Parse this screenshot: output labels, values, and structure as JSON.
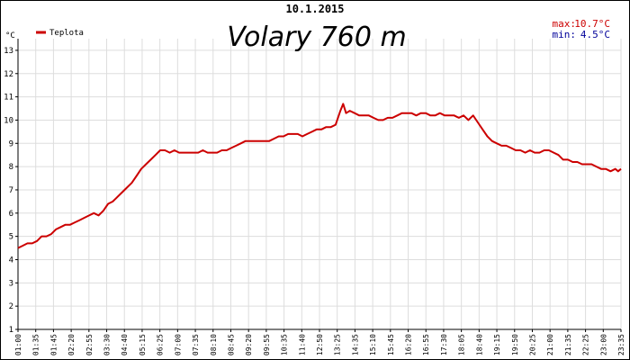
{
  "chart_data": {
    "type": "line",
    "date": "10.1.2015",
    "title": "Volary 760 m",
    "legend": "Teplota",
    "legend_position": "top-left",
    "y_unit": "°C",
    "ylim": [
      1,
      13.5
    ],
    "y_ticks": [
      1,
      2,
      3,
      4,
      5,
      6,
      7,
      8,
      9,
      10,
      11,
      12,
      13
    ],
    "grid": true,
    "stats": {
      "max_label": "max:",
      "max_value": "10.7°C",
      "min_label": "min:",
      "min_value": "4.5°C"
    },
    "colors": {
      "line": "#cc0000",
      "max": "#cc0000",
      "min": "#000099",
      "grid": "#dddddd"
    },
    "x_ticks": [
      "01:00",
      "01:35",
      "01:45",
      "02:20",
      "02:55",
      "03:30",
      "04:40",
      "05:15",
      "06:25",
      "07:00",
      "07:35",
      "08:10",
      "08:45",
      "09:20",
      "09:55",
      "10:35",
      "11:40",
      "12:50",
      "13:25",
      "14:35",
      "15:10",
      "15:45",
      "16:20",
      "16:55",
      "17:30",
      "18:05",
      "18:40",
      "19:15",
      "19:50",
      "20:25",
      "21:00",
      "21:35",
      "22:25",
      "23:00",
      "23:35"
    ],
    "series": [
      {
        "name": "Teplota",
        "points": [
          [
            0,
            4.5
          ],
          [
            0.5,
            4.6
          ],
          [
            1.0,
            4.7
          ],
          [
            1.5,
            4.7
          ],
          [
            2.0,
            4.8
          ],
          [
            2.5,
            5.0
          ],
          [
            3.0,
            5.0
          ],
          [
            3.5,
            5.1
          ],
          [
            4.0,
            5.3
          ],
          [
            4.5,
            5.4
          ],
          [
            5.0,
            5.5
          ],
          [
            5.5,
            5.5
          ],
          [
            6.0,
            5.6
          ],
          [
            6.5,
            5.7
          ],
          [
            7.0,
            5.8
          ],
          [
            7.5,
            5.9
          ],
          [
            8.0,
            6.0
          ],
          [
            8.5,
            5.9
          ],
          [
            9.0,
            6.1
          ],
          [
            9.5,
            6.4
          ],
          [
            10.0,
            6.5
          ],
          [
            10.5,
            6.7
          ],
          [
            11.0,
            6.9
          ],
          [
            11.5,
            7.1
          ],
          [
            12.0,
            7.3
          ],
          [
            12.5,
            7.6
          ],
          [
            13.0,
            7.9
          ],
          [
            13.5,
            8.1
          ],
          [
            14.0,
            8.3
          ],
          [
            14.5,
            8.5
          ],
          [
            15.0,
            8.7
          ],
          [
            15.5,
            8.7
          ],
          [
            16.0,
            8.6
          ],
          [
            16.5,
            8.7
          ],
          [
            17.0,
            8.6
          ],
          [
            17.5,
            8.6
          ],
          [
            18.0,
            8.6
          ],
          [
            18.5,
            8.6
          ],
          [
            19.0,
            8.6
          ],
          [
            19.5,
            8.7
          ],
          [
            20.0,
            8.6
          ],
          [
            20.5,
            8.6
          ],
          [
            21.0,
            8.6
          ],
          [
            21.5,
            8.7
          ],
          [
            22.0,
            8.7
          ],
          [
            22.5,
            8.8
          ],
          [
            23.0,
            8.9
          ],
          [
            23.5,
            9.0
          ],
          [
            24.0,
            9.1
          ],
          [
            24.5,
            9.1
          ],
          [
            25.0,
            9.1
          ],
          [
            25.5,
            9.1
          ],
          [
            26.0,
            9.1
          ],
          [
            26.5,
            9.1
          ],
          [
            27.0,
            9.2
          ],
          [
            27.5,
            9.3
          ],
          [
            28.0,
            9.3
          ],
          [
            28.5,
            9.4
          ],
          [
            29.0,
            9.4
          ],
          [
            29.5,
            9.4
          ],
          [
            30.0,
            9.3
          ],
          [
            30.5,
            9.4
          ],
          [
            31.0,
            9.5
          ],
          [
            31.5,
            9.6
          ],
          [
            32.0,
            9.6
          ],
          [
            32.5,
            9.7
          ],
          [
            33.0,
            9.7
          ],
          [
            33.5,
            9.8
          ],
          [
            34.0,
            10.4
          ],
          [
            34.3,
            10.7
          ],
          [
            34.6,
            10.3
          ],
          [
            35.0,
            10.4
          ],
          [
            35.5,
            10.3
          ],
          [
            36.0,
            10.2
          ],
          [
            36.5,
            10.2
          ],
          [
            37.0,
            10.2
          ],
          [
            37.5,
            10.1
          ],
          [
            38.0,
            10.0
          ],
          [
            38.5,
            10.0
          ],
          [
            39.0,
            10.1
          ],
          [
            39.5,
            10.1
          ],
          [
            40.0,
            10.2
          ],
          [
            40.5,
            10.3
          ],
          [
            41.0,
            10.3
          ],
          [
            41.5,
            10.3
          ],
          [
            42.0,
            10.2
          ],
          [
            42.5,
            10.3
          ],
          [
            43.0,
            10.3
          ],
          [
            43.5,
            10.2
          ],
          [
            44.0,
            10.2
          ],
          [
            44.5,
            10.3
          ],
          [
            45.0,
            10.2
          ],
          [
            45.5,
            10.2
          ],
          [
            46.0,
            10.2
          ],
          [
            46.5,
            10.1
          ],
          [
            47.0,
            10.2
          ],
          [
            47.5,
            10.0
          ],
          [
            48.0,
            10.2
          ],
          [
            48.5,
            9.9
          ],
          [
            49.0,
            9.6
          ],
          [
            49.5,
            9.3
          ],
          [
            50.0,
            9.1
          ],
          [
            50.5,
            9.0
          ],
          [
            51.0,
            8.9
          ],
          [
            51.5,
            8.9
          ],
          [
            52.0,
            8.8
          ],
          [
            52.5,
            8.7
          ],
          [
            53.0,
            8.7
          ],
          [
            53.5,
            8.6
          ],
          [
            54.0,
            8.7
          ],
          [
            54.5,
            8.6
          ],
          [
            55.0,
            8.6
          ],
          [
            55.5,
            8.7
          ],
          [
            56.0,
            8.7
          ],
          [
            56.5,
            8.6
          ],
          [
            57.0,
            8.5
          ],
          [
            57.5,
            8.3
          ],
          [
            58.0,
            8.3
          ],
          [
            58.5,
            8.2
          ],
          [
            59.0,
            8.2
          ],
          [
            59.5,
            8.1
          ],
          [
            60.0,
            8.1
          ],
          [
            60.5,
            8.1
          ],
          [
            61.0,
            8.0
          ],
          [
            61.5,
            7.9
          ],
          [
            62.0,
            7.9
          ],
          [
            62.5,
            7.8
          ],
          [
            63.0,
            7.9
          ],
          [
            63.3,
            7.8
          ],
          [
            63.6,
            7.9
          ]
        ]
      }
    ]
  }
}
